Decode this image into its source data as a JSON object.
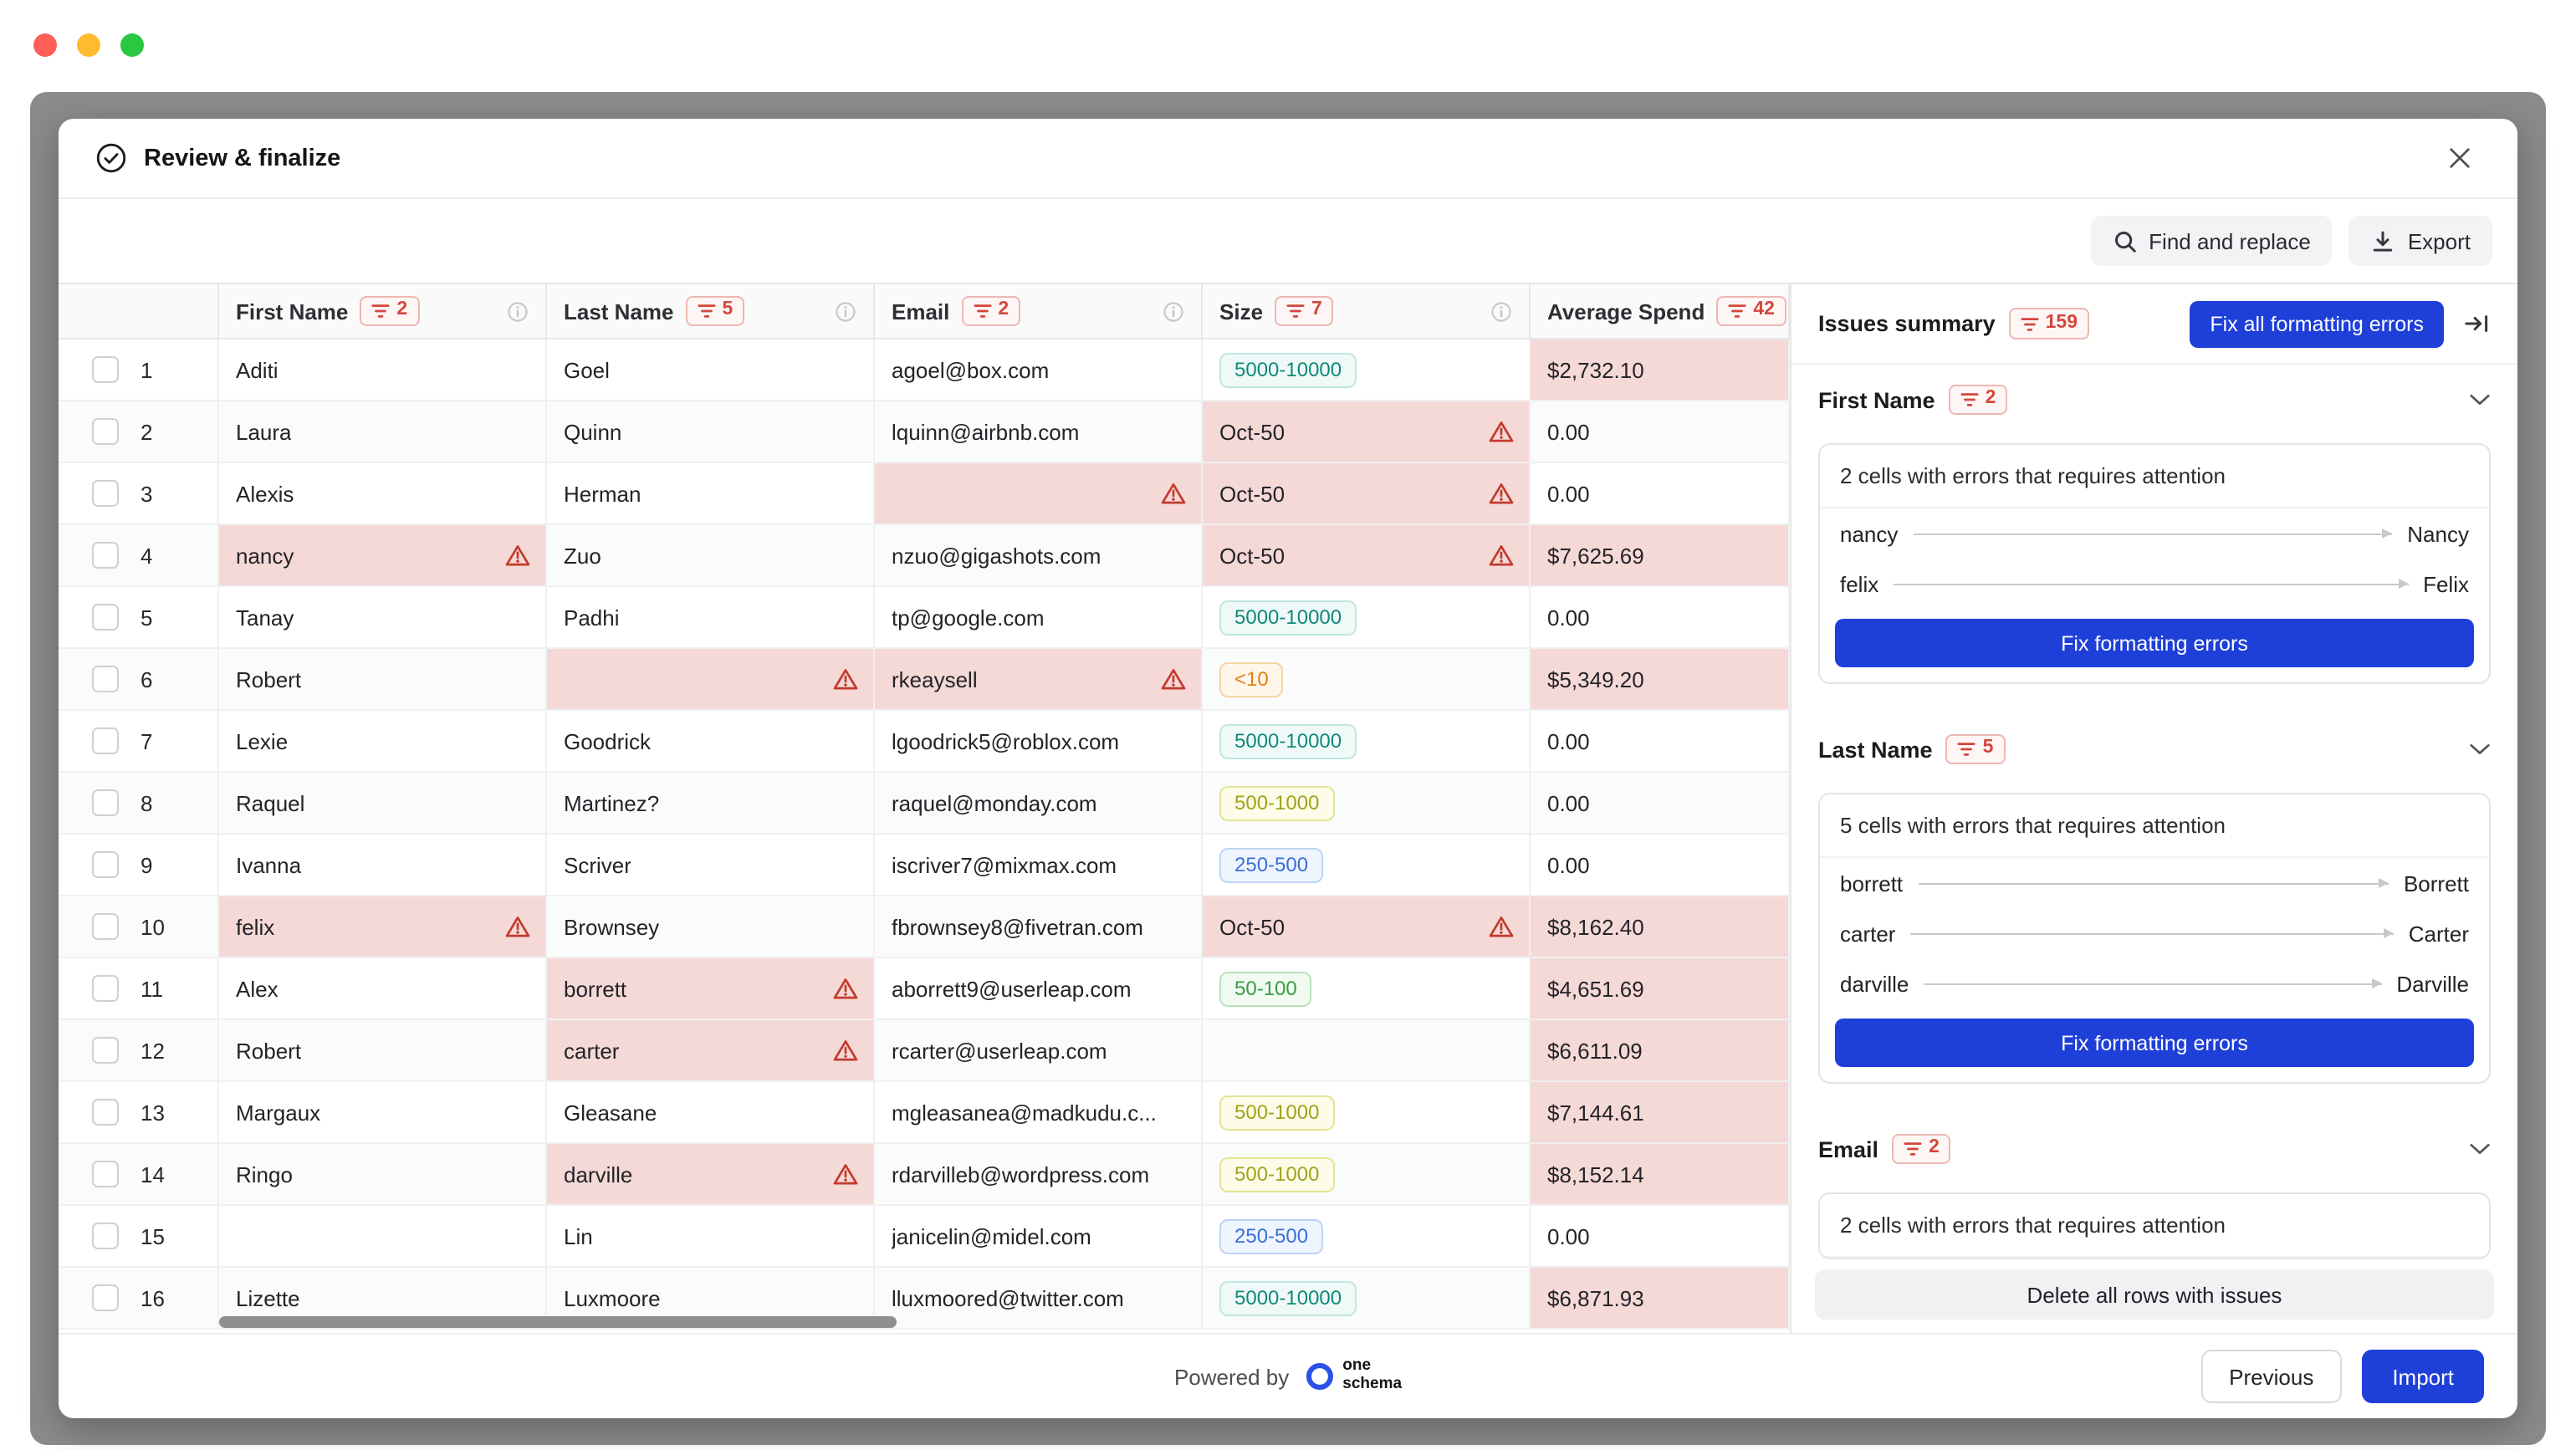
{
  "modal": {
    "title": "Review & finalize"
  },
  "toolbar": {
    "find_replace_label": "Find and replace",
    "export_label": "Export"
  },
  "table": {
    "columns": [
      {
        "label": "First Name",
        "badge": "2"
      },
      {
        "label": "Last Name",
        "badge": "5"
      },
      {
        "label": "Email",
        "badge": "2"
      },
      {
        "label": "Size",
        "badge": "7"
      },
      {
        "label": "Average Spend",
        "badge": "42"
      }
    ],
    "rows": [
      {
        "num": "1",
        "cells": [
          {
            "text": "Aditi"
          },
          {
            "text": "Goel"
          },
          {
            "text": "agoel@box.com"
          },
          {
            "text": "5000-10000",
            "badge": "teal"
          },
          {
            "text": "$2,732.10",
            "error": true
          }
        ]
      },
      {
        "num": "2",
        "cells": [
          {
            "text": "Laura"
          },
          {
            "text": "Quinn"
          },
          {
            "text": "lquinn@airbnb.com"
          },
          {
            "text": "Oct-50",
            "error": true,
            "warn": true
          },
          {
            "text": "0.00"
          }
        ]
      },
      {
        "num": "3",
        "cells": [
          {
            "text": "Alexis"
          },
          {
            "text": "Herman"
          },
          {
            "text": "",
            "error": true,
            "warn": true
          },
          {
            "text": "Oct-50",
            "error": true,
            "warn": true
          },
          {
            "text": "0.00"
          }
        ]
      },
      {
        "num": "4",
        "cells": [
          {
            "text": "nancy",
            "error": true,
            "warn": true
          },
          {
            "text": "Zuo"
          },
          {
            "text": "nzuo@gigashots.com"
          },
          {
            "text": "Oct-50",
            "error": true,
            "warn": true
          },
          {
            "text": "$7,625.69",
            "error": true
          }
        ]
      },
      {
        "num": "5",
        "cells": [
          {
            "text": "Tanay"
          },
          {
            "text": "Padhi"
          },
          {
            "text": "tp@google.com"
          },
          {
            "text": "5000-10000",
            "badge": "teal"
          },
          {
            "text": "0.00"
          }
        ]
      },
      {
        "num": "6",
        "cells": [
          {
            "text": "Robert"
          },
          {
            "text": "",
            "error": true,
            "warn": true
          },
          {
            "text": "rkeaysell",
            "error": true,
            "warn": true
          },
          {
            "text": "<10",
            "badge": "orange"
          },
          {
            "text": "$5,349.20",
            "error": true
          }
        ]
      },
      {
        "num": "7",
        "cells": [
          {
            "text": "Lexie"
          },
          {
            "text": "Goodrick"
          },
          {
            "text": "lgoodrick5@roblox.com"
          },
          {
            "text": "5000-10000",
            "badge": "teal"
          },
          {
            "text": "0.00"
          }
        ]
      },
      {
        "num": "8",
        "cells": [
          {
            "text": "Raquel"
          },
          {
            "text": "Martinez?"
          },
          {
            "text": "raquel@monday.com"
          },
          {
            "text": "500-1000",
            "badge": "yellow"
          },
          {
            "text": "0.00"
          }
        ]
      },
      {
        "num": "9",
        "cells": [
          {
            "text": "Ivanna"
          },
          {
            "text": "Scriver"
          },
          {
            "text": "iscriver7@mixmax.com"
          },
          {
            "text": "250-500",
            "badge": "blue"
          },
          {
            "text": "0.00"
          }
        ]
      },
      {
        "num": "10",
        "cells": [
          {
            "text": "felix",
            "error": true,
            "warn": true
          },
          {
            "text": "Brownsey"
          },
          {
            "text": "fbrownsey8@fivetran.com"
          },
          {
            "text": "Oct-50",
            "error": true,
            "warn": true
          },
          {
            "text": "$8,162.40",
            "error": true
          }
        ]
      },
      {
        "num": "11",
        "cells": [
          {
            "text": "Alex"
          },
          {
            "text": "borrett",
            "error": true,
            "warn": true
          },
          {
            "text": "aborrett9@userleap.com"
          },
          {
            "text": "50-100",
            "badge": "green"
          },
          {
            "text": "$4,651.69",
            "error": true
          }
        ]
      },
      {
        "num": "12",
        "cells": [
          {
            "text": "Robert"
          },
          {
            "text": "carter",
            "error": true,
            "warn": true
          },
          {
            "text": "rcarter@userleap.com"
          },
          {
            "text": ""
          },
          {
            "text": "$6,611.09",
            "error": true
          }
        ]
      },
      {
        "num": "13",
        "cells": [
          {
            "text": "Margaux"
          },
          {
            "text": "Gleasane"
          },
          {
            "text": "mgleasanea@madkudu.c..."
          },
          {
            "text": "500-1000",
            "badge": "yellow"
          },
          {
            "text": "$7,144.61",
            "error": true
          }
        ]
      },
      {
        "num": "14",
        "cells": [
          {
            "text": "Ringo"
          },
          {
            "text": "darville",
            "error": true,
            "warn": true
          },
          {
            "text": "rdarvilleb@wordpress.com"
          },
          {
            "text": "500-1000",
            "badge": "yellow"
          },
          {
            "text": "$8,152.14",
            "error": true
          }
        ]
      },
      {
        "num": "15",
        "cells": [
          {
            "text": ""
          },
          {
            "text": "Lin"
          },
          {
            "text": "janicelin@midel.com"
          },
          {
            "text": "250-500",
            "badge": "blue"
          },
          {
            "text": "0.00"
          }
        ]
      },
      {
        "num": "16",
        "cells": [
          {
            "text": "Lizette"
          },
          {
            "text": "Luxmoore"
          },
          {
            "text": "lluxmoored@twitter.com"
          },
          {
            "text": "5000-10000",
            "badge": "teal"
          },
          {
            "text": "$6,871.93",
            "error": true
          }
        ]
      }
    ]
  },
  "panel": {
    "title": "Issues summary",
    "badge": "159",
    "fix_all_label": "Fix all formatting errors",
    "sections": [
      {
        "label": "First Name",
        "badge": "2",
        "card_title": "2 cells with errors that requires attention",
        "mappings": [
          {
            "from": "nancy",
            "to": "Nancy"
          },
          {
            "from": "felix",
            "to": "Felix"
          }
        ],
        "fix_label": "Fix formatting errors"
      },
      {
        "label": "Last Name",
        "badge": "5",
        "card_title": "5 cells with errors that requires attention",
        "mappings": [
          {
            "from": "borrett",
            "to": "Borrett"
          },
          {
            "from": "carter",
            "to": "Carter"
          },
          {
            "from": "darville",
            "to": "Darville"
          }
        ],
        "fix_label": "Fix formatting errors"
      },
      {
        "label": "Email",
        "badge": "2",
        "card_title": "2 cells with errors that requires attention",
        "mappings": [],
        "fix_label": null
      }
    ],
    "delete_label": "Delete all rows with issues"
  },
  "footer": {
    "powered_by": "Powered by",
    "brand_line1": "one",
    "brand_line2": "schema",
    "previous_label": "Previous",
    "import_label": "Import"
  },
  "colors": {
    "accent_blue": "#1e3fd8",
    "error_red": "#c23b2e",
    "error_cell_bg": "#f5d9d6",
    "filter_badge_red": "#d3473c",
    "pills": {
      "teal": {
        "text": "#11887a",
        "bg": "#effaf8",
        "border": "#bfe7e1"
      },
      "blue": {
        "text": "#3a6fd8",
        "bg": "#eff5fe",
        "border": "#bcd3f5"
      },
      "green": {
        "text": "#379b45",
        "bg": "#f2fbf2",
        "border": "#b9e2ba"
      },
      "yellow": {
        "text": "#a2a21a",
        "bg": "#fcfce9",
        "border": "#e4e494"
      },
      "orange": {
        "text": "#e1820f",
        "bg": "#fff6ea",
        "border": "#f5d5a3"
      }
    }
  }
}
